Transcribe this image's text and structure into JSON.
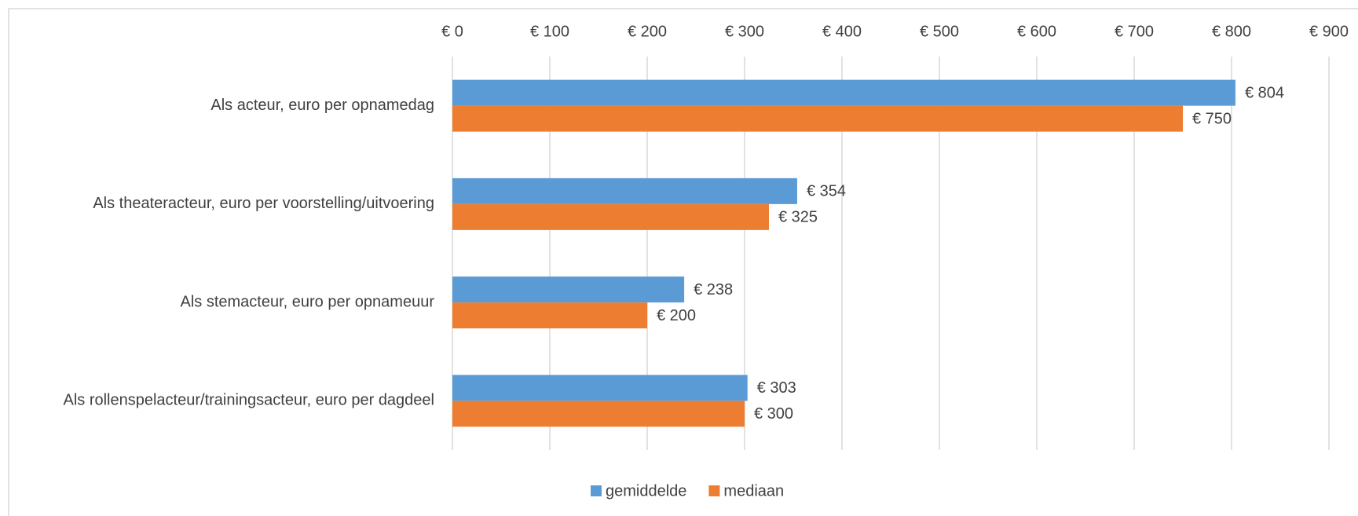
{
  "chart_data": {
    "type": "bar",
    "orientation": "horizontal",
    "categories": [
      "Als acteur, euro per opnamedag",
      "Als theateracteur, euro per voorstelling/uitvoering",
      "Als stemacteur, euro per opnameuur",
      "Als rollenspelacteur/trainingsacteur, euro per dagdeel"
    ],
    "series": [
      {
        "name": "gemiddelde",
        "color": "#5b9bd5",
        "values": [
          804,
          354,
          238,
          303
        ],
        "value_labels": [
          "€ 804",
          "€ 354",
          "€ 238",
          "€ 303"
        ]
      },
      {
        "name": "mediaan",
        "color": "#ed7d31",
        "values": [
          750,
          325,
          200,
          300
        ],
        "value_labels": [
          "€ 750",
          "€ 325",
          "€ 200",
          "€ 300"
        ]
      }
    ],
    "xlim": [
      0,
      900
    ],
    "xticks": [
      {
        "value": 0,
        "label": "€ 0"
      },
      {
        "value": 100,
        "label": "€ 100"
      },
      {
        "value": 200,
        "label": "€ 200"
      },
      {
        "value": 300,
        "label": "€ 300"
      },
      {
        "value": 400,
        "label": "€ 400"
      },
      {
        "value": 500,
        "label": "€ 500"
      },
      {
        "value": 600,
        "label": "€ 600"
      },
      {
        "value": 700,
        "label": "€ 700"
      },
      {
        "value": 800,
        "label": "€ 800"
      },
      {
        "value": 900,
        "label": "€ 900"
      }
    ],
    "grid": true,
    "legend": "bottom"
  }
}
